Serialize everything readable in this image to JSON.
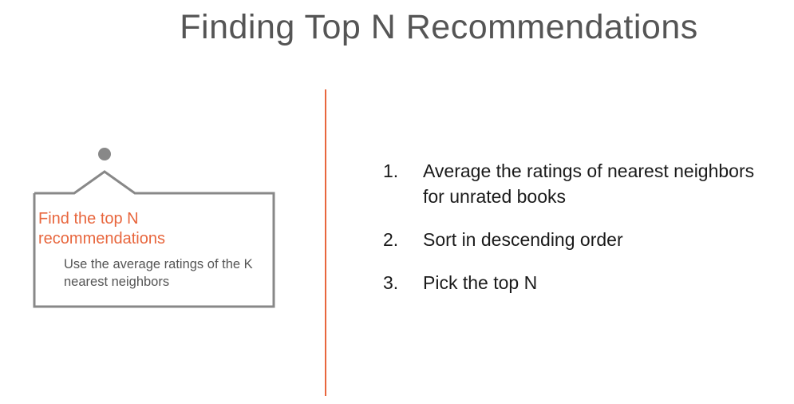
{
  "title": "Finding Top N Recommendations",
  "sign": {
    "heading": "Find the top N recommendations",
    "body": "Use the average ratings of the K nearest neighbors"
  },
  "steps": [
    {
      "number": "1.",
      "text": "Average the ratings of nearest neighbors for unrated books"
    },
    {
      "number": "2.",
      "text": "Sort in descending order"
    },
    {
      "number": "3.",
      "text": "Pick the top N"
    }
  ],
  "colors": {
    "accent": "#e8663d",
    "sign_border": "#888888",
    "title_text": "#555555",
    "body_text": "#1a1a1a"
  }
}
